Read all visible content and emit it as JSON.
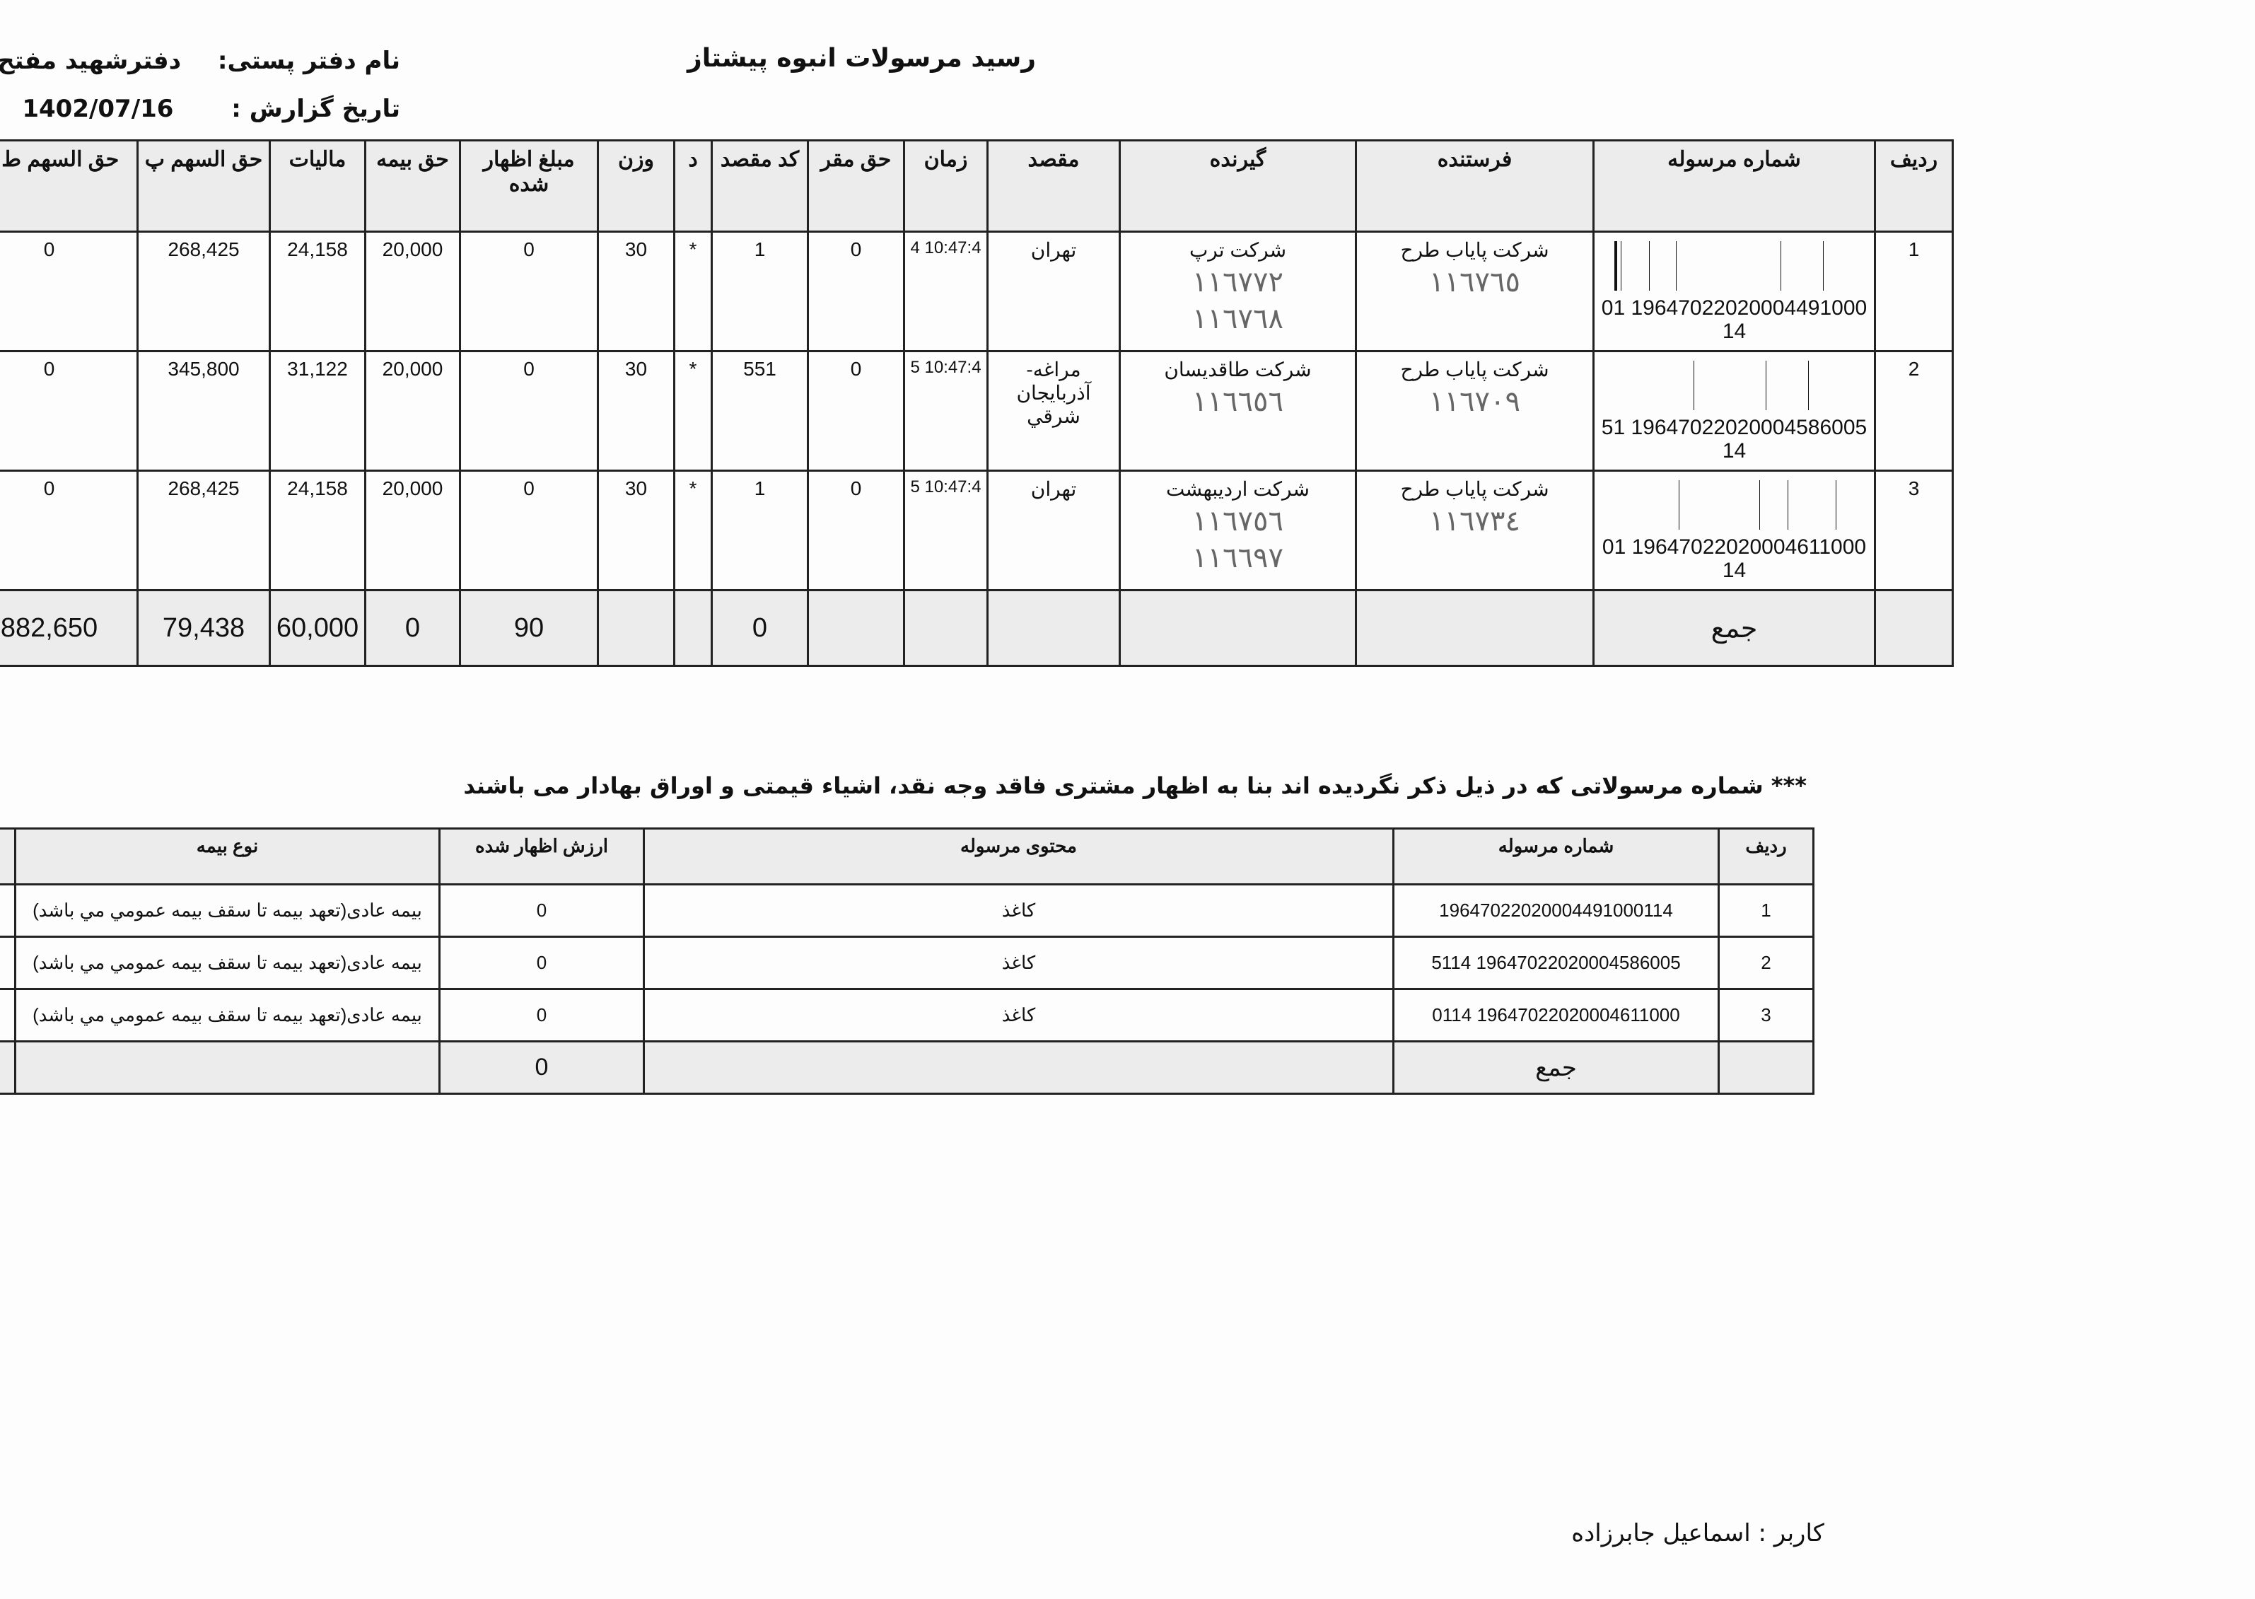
{
  "header": {
    "title": "رسید مرسولات انبوه  پیشتاز",
    "office_label": "نام دفتر پستی:",
    "office_value": "دفترشهید مفتح تحت وب",
    "date_label": "تاریخ گزارش :",
    "date_value": "1402/07/16"
  },
  "main_table": {
    "columns": [
      "ردیف",
      "شماره مرسوله",
      "فرستنده",
      "گیرنده",
      "مقصد",
      "زمان",
      "حق مقر",
      "کد مقصد",
      "د",
      "وزن",
      "مبلغ اظهار شده",
      "حق بیمه",
      "مالیات",
      "حق السهم پ",
      "حق السهم ط ق"
    ],
    "dest_marker": "•",
    "rows": [
      {
        "radif": "1",
        "tracking": "19647022020004491000 0114",
        "sender": "شرکت پایاب طرح",
        "sender_hand": "١١٦٧٦٥",
        "receiver": "شرکت ترپ",
        "receiver_hand": [
          "١١٦٧٧٢",
          "١١٦٧٦٨"
        ],
        "dest": "تهران",
        "time": "10:47:4 4",
        "haq_maqar": "0",
        "dest_code": "1",
        "d": "*",
        "weight": "30",
        "declared": "0",
        "insurance": "20,000",
        "tax": "24,158",
        "share_p": "268,425",
        "share_t": "0"
      },
      {
        "radif": "2",
        "tracking": "19647022020004586005 5114",
        "sender": "شرکت پایاب طرح",
        "sender_hand": "١١٦٧٠٩",
        "receiver": "شرکت طاقدیسان",
        "receiver_hand": [
          "١١٦٦٥٦"
        ],
        "dest": "مراغه-آذربایجان شرقي",
        "time": "10:47:4 5",
        "haq_maqar": "0",
        "dest_code": "551",
        "d": "*",
        "weight": "30",
        "declared": "0",
        "insurance": "20,000",
        "tax": "31,122",
        "share_p": "345,800",
        "share_t": "0"
      },
      {
        "radif": "3",
        "tracking": "19647022020004611000 0114",
        "sender": "شرکت پایاب طرح",
        "sender_hand": "١١٦٧٣٤",
        "receiver": "شرکت اردیبهشت",
        "receiver_hand": [
          "١١٦٧٥٦",
          "١١٦٦٩٧"
        ],
        "dest": "تهران",
        "time": "10:47:4 5",
        "haq_maqar": "0",
        "dest_code": "1",
        "d": "*",
        "weight": "30",
        "declared": "0",
        "insurance": "20,000",
        "tax": "24,158",
        "share_p": "268,425",
        "share_t": "0"
      }
    ],
    "total": {
      "label": "جمع",
      "haq_maqar": "0",
      "weight": "90",
      "declared": "0",
      "insurance": "60,000",
      "tax": "79,438",
      "share_p": "882,650",
      "share_t": "0"
    }
  },
  "note": "*** شماره مرسولاتی که در ذیل ذکر نگردیده اند بنا به اظهار مشتری فاقد وجه نقد، اشیاء قیمتی و اوراق بهادار می باشند",
  "contents_table": {
    "columns": [
      "ردیف",
      "شماره مرسوله",
      "محتوی مرسوله",
      "ارزش اظهار شده",
      "نوع بیمه"
    ],
    "rows": [
      {
        "radif": "1",
        "tracking": "19647022020004491000114",
        "content": "کاغذ",
        "declared": "0",
        "insurance_type": "بیمه عادی(تعهد بیمه تا سقف بیمه عمومي مي باشد)"
      },
      {
        "radif": "2",
        "tracking": "19647022020004586005 5114",
        "content": "کاغذ",
        "declared": "0",
        "insurance_type": "بیمه عادی(تعهد بیمه تا سقف بیمه عمومي مي باشد)"
      },
      {
        "radif": "3",
        "tracking": "19647022020004611000 0114",
        "content": "کاغذ",
        "declared": "0",
        "insurance_type": "بیمه عادی(تعهد بیمه تا سقف بیمه عمومي مي باشد)"
      }
    ],
    "total": {
      "label": "جمع",
      "declared": "0"
    }
  },
  "footer": {
    "user_label": "کاربر :",
    "user_name": "اسماعیل جابرزاده"
  }
}
